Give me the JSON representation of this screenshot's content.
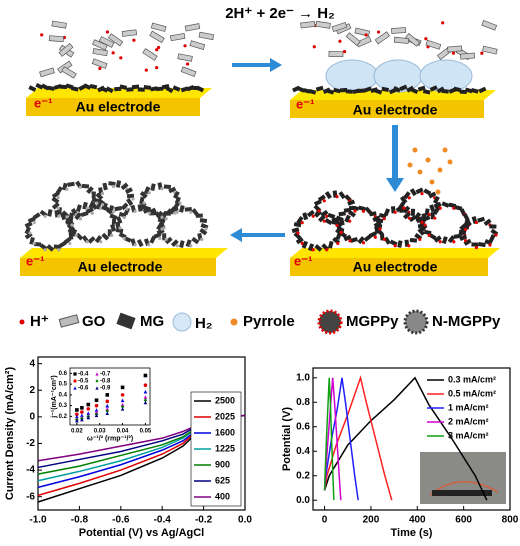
{
  "schematic": {
    "equation": "2H⁺ + 2e⁻ → H₂",
    "panels": [
      {
        "electrode": "Au electrode",
        "electron": "e⁻¹"
      },
      {
        "electrode": "Au electrode",
        "electron": "e⁻¹"
      },
      {
        "electrode": "Au electrode",
        "electron": "e⁻¹"
      },
      {
        "electrode": "Au electrode",
        "electron": "e⁻¹"
      }
    ],
    "legend": [
      "H⁺",
      "GO",
      "MG",
      "H₂",
      "Pyrrole",
      "MGPPy",
      "N-MGPPy"
    ]
  },
  "chart_data": [
    {
      "type": "line",
      "xlabel": "Potential (V) vs Ag/AgCl",
      "ylabel": "Current Density (mA/cm²)",
      "xlim": [
        -1,
        0
      ],
      "xticks": [
        {
          "value": -1,
          "label": "-1.0"
        },
        -0.8,
        -0.6,
        -0.4,
        -0.2,
        {
          "value": 0,
          "label": "0.0"
        }
      ],
      "ylim": [
        -7,
        4.5
      ],
      "yticks": [
        -6,
        -4,
        -2,
        0,
        2,
        4
      ],
      "legend": "lower right",
      "x": [
        -1,
        -0.8,
        -0.6,
        -0.4,
        -0.3,
        -0.2,
        -0.15,
        0
      ],
      "series": [
        {
          "name": "2500",
          "color": "#000000",
          "values": [
            -6.4,
            -5.4,
            -4.4,
            -3.1,
            -2.2,
            -0.7,
            -0.1,
            0.1
          ]
        },
        {
          "name": "2025",
          "color": "#e00000",
          "values": [
            -5.9,
            -5.0,
            -4.0,
            -2.8,
            -2.0,
            -0.6,
            -0.1,
            0.1
          ]
        },
        {
          "name": "1600",
          "color": "#0000e0",
          "values": [
            -5.3,
            -4.5,
            -3.6,
            -2.5,
            -1.8,
            -0.6,
            -0.1,
            0.1
          ]
        },
        {
          "name": "1225",
          "color": "#00a0a0",
          "values": [
            -4.8,
            -4.1,
            -3.3,
            -2.3,
            -1.6,
            -0.5,
            -0.1,
            0.1
          ]
        },
        {
          "name": "900",
          "color": "#008000",
          "values": [
            -4.3,
            -3.7,
            -2.9,
            -2.1,
            -1.5,
            -0.5,
            -0.1,
            0.1
          ]
        },
        {
          "name": "625",
          "color": "#000080",
          "values": [
            -3.8,
            -3.2,
            -2.6,
            -1.8,
            -1.3,
            -0.4,
            -0.1,
            0.1
          ]
        },
        {
          "name": "400",
          "color": "#800080",
          "values": [
            -3.3,
            -2.8,
            -2.2,
            -1.6,
            -1.1,
            -0.4,
            -0.1,
            0.1
          ]
        }
      ]
    },
    {
      "type": "scatter",
      "xlabel": "ω⁻¹/² (rmp⁻¹/²)",
      "ylabel": "j⁻¹(mA⁻¹cm²)",
      "xlim": [
        0.017,
        0.052
      ],
      "xticks": [
        0.02,
        0.03,
        0.04,
        0.05
      ],
      "ylim": [
        0.12,
        0.65
      ],
      "yticks": [
        0.2,
        0.3,
        0.4,
        0.5,
        0.6
      ],
      "x": [
        0.02,
        0.0222,
        0.025,
        0.0286,
        0.0333,
        0.04,
        0.05
      ],
      "series": [
        {
          "name": "-0.4",
          "color": "#000000",
          "marker": "square",
          "values": [
            0.26,
            0.28,
            0.31,
            0.35,
            0.4,
            0.47,
            0.58
          ]
        },
        {
          "name": "-0.5",
          "color": "#e00000",
          "marker": "circle",
          "values": [
            0.22,
            0.24,
            0.27,
            0.3,
            0.34,
            0.4,
            0.49
          ]
        },
        {
          "name": "-0.6",
          "color": "#0000e0",
          "marker": "triangle",
          "values": [
            0.2,
            0.21,
            0.23,
            0.26,
            0.3,
            0.35,
            0.43
          ]
        },
        {
          "name": "-0.7",
          "color": "#d000d0",
          "marker": "triangle",
          "values": [
            0.18,
            0.19,
            0.21,
            0.24,
            0.27,
            0.31,
            0.38
          ]
        },
        {
          "name": "-0.8",
          "color": "#008000",
          "marker": "diamond",
          "values": [
            0.17,
            0.18,
            0.2,
            0.22,
            0.25,
            0.29,
            0.35
          ]
        },
        {
          "name": "-0.9",
          "color": "#000080",
          "marker": "triangle",
          "values": [
            0.16,
            0.17,
            0.19,
            0.21,
            0.23,
            0.27,
            0.33
          ]
        }
      ]
    },
    {
      "type": "line",
      "xlabel": "Time (s)",
      "ylabel": "Potential (V)",
      "xlim": [
        -50,
        800
      ],
      "xticks": [
        0,
        200,
        400,
        600,
        800
      ],
      "ylim": [
        -0.08,
        1.08
      ],
      "yticks": [
        {
          "value": 0,
          "label": "0.0"
        },
        0.2,
        0.4,
        0.6,
        0.8,
        {
          "value": 1,
          "label": "1.0"
        }
      ],
      "legend": "upper right",
      "series": [
        {
          "name": "0.3 mA/cm²",
          "color": "#000000",
          "x": [
            0,
            20,
            100,
            200,
            300,
            390,
            450,
            550,
            650,
            700
          ],
          "values": [
            0.08,
            0.2,
            0.45,
            0.65,
            0.82,
            1.0,
            0.78,
            0.5,
            0.2,
            0.0
          ]
        },
        {
          "name": "0.5 mA/cm²",
          "color": "#ff2020",
          "x": [
            0,
            10,
            50,
            100,
            155,
            180,
            220,
            260,
            290
          ],
          "values": [
            0.08,
            0.2,
            0.45,
            0.7,
            1.0,
            0.8,
            0.5,
            0.2,
            0.0
          ]
        },
        {
          "name": "1 mA/cm²",
          "color": "#2020ff",
          "x": [
            0,
            5,
            30,
            55,
            75,
            90,
            110,
            130,
            145
          ],
          "values": [
            0.08,
            0.2,
            0.5,
            0.75,
            1.0,
            0.8,
            0.5,
            0.2,
            0.0
          ]
        },
        {
          "name": "2 mA/cm²",
          "color": "#d000d0",
          "x": [
            0,
            3,
            15,
            25,
            35,
            43,
            53,
            63,
            70
          ],
          "values": [
            0.08,
            0.2,
            0.5,
            0.75,
            1.0,
            0.8,
            0.5,
            0.2,
            0.0
          ]
        },
        {
          "name": "3 mA/cm²",
          "color": "#10a010",
          "x": [
            0,
            2,
            8,
            14,
            20,
            25,
            30,
            36,
            40
          ],
          "values": [
            0.08,
            0.2,
            0.5,
            0.75,
            1.0,
            0.8,
            0.5,
            0.2,
            0.0
          ]
        }
      ]
    }
  ]
}
